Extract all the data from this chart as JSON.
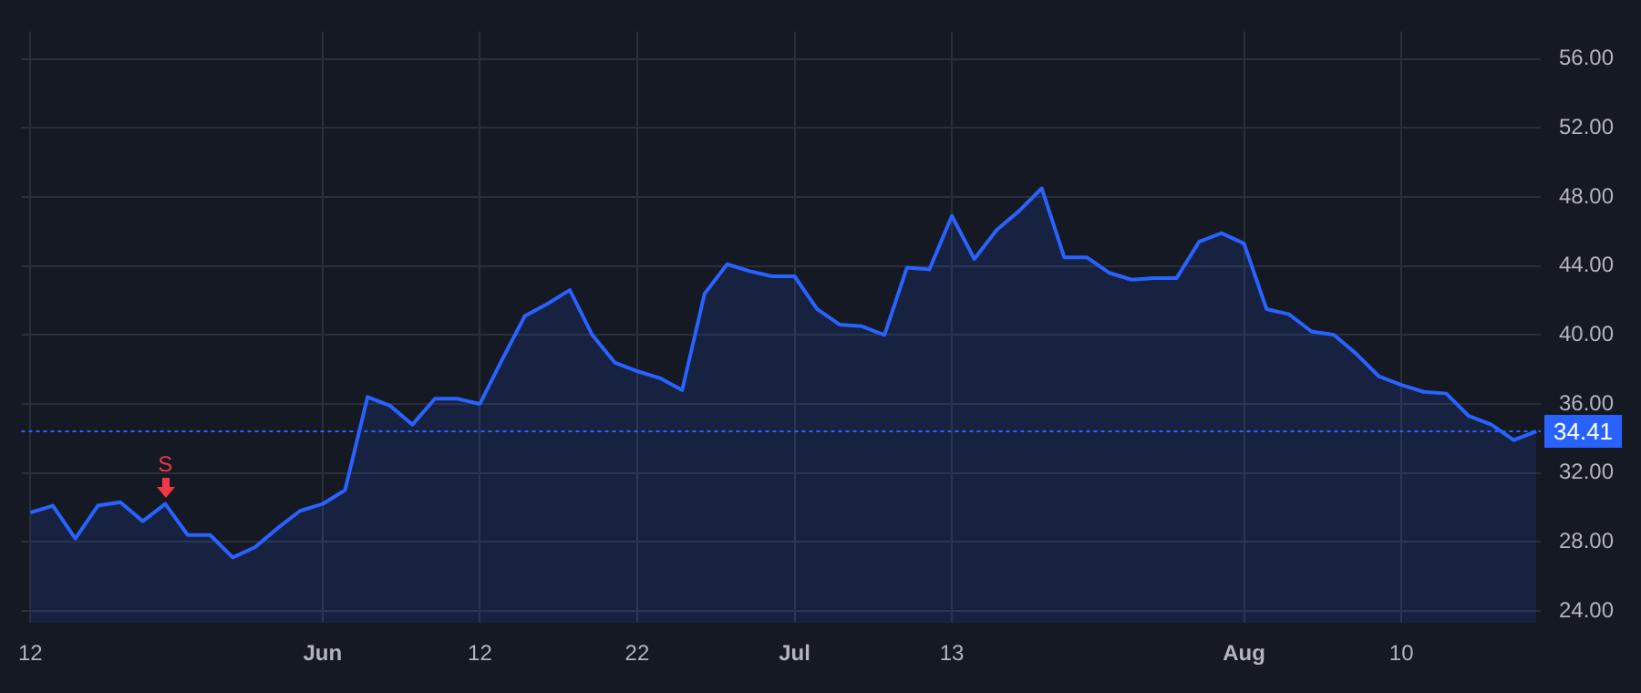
{
  "chart_data": {
    "type": "area",
    "categories": [
      "12",
      null,
      null,
      null,
      null,
      null,
      null,
      null,
      null,
      null,
      null,
      null,
      null,
      "Jun",
      null,
      null,
      null,
      null,
      null,
      null,
      "12",
      null,
      null,
      null,
      null,
      null,
      null,
      "22",
      null,
      null,
      null,
      null,
      null,
      null,
      "Jul",
      null,
      null,
      null,
      null,
      null,
      null,
      "13",
      null,
      null,
      null,
      null,
      null,
      null,
      null,
      null,
      null,
      null,
      null,
      null,
      "Aug",
      null,
      null,
      null,
      null,
      null,
      null,
      "10",
      null,
      null,
      null,
      null,
      null,
      null
    ],
    "series": [
      {
        "color": "#2962ff",
        "values": [
          29.7,
          30.1,
          28.2,
          30.1,
          30.3,
          29.2,
          30.2,
          28.4,
          28.4,
          27.1,
          27.7,
          28.8,
          29.8,
          30.2,
          31.0,
          36.4,
          35.9,
          34.8,
          36.3,
          36.3,
          36.0,
          38.6,
          41.1,
          41.8,
          42.6,
          40.0,
          38.4,
          37.9,
          37.5,
          36.8,
          42.4,
          44.1,
          43.7,
          43.4,
          43.4,
          41.5,
          40.6,
          40.5,
          40.0,
          43.9,
          43.8,
          46.9,
          44.4,
          46.1,
          47.2,
          48.5,
          44.5,
          44.5,
          43.6,
          43.2,
          43.3,
          43.3,
          45.4,
          45.9,
          45.3,
          41.5,
          41.2,
          40.2,
          40.0,
          38.9,
          37.6,
          37.1,
          36.7,
          36.6,
          35.3,
          34.8,
          33.9,
          34.41
        ]
      }
    ],
    "ylim": [
      23.3,
      57.6
    ],
    "yticks": [
      {
        "value": 24,
        "label": "24.00"
      },
      {
        "value": 28,
        "label": "28.00"
      },
      {
        "value": 32,
        "label": "32.00"
      },
      {
        "value": 36,
        "label": "36.00"
      },
      {
        "value": 40,
        "label": "40.00"
      },
      {
        "value": 44,
        "label": "44.00"
      },
      {
        "value": 48,
        "label": "48.00"
      },
      {
        "value": 52,
        "label": "52.00"
      },
      {
        "value": 56,
        "label": "56.00"
      }
    ],
    "ref_lines": [
      {
        "axis": "y",
        "value": 34.41,
        "label": "34.41",
        "color": "#2962ff",
        "line_style": "dotted"
      }
    ],
    "annotations": [
      {
        "text": "S",
        "y": 30.2
      }
    ],
    "grid": true,
    "legend": false
  }
}
